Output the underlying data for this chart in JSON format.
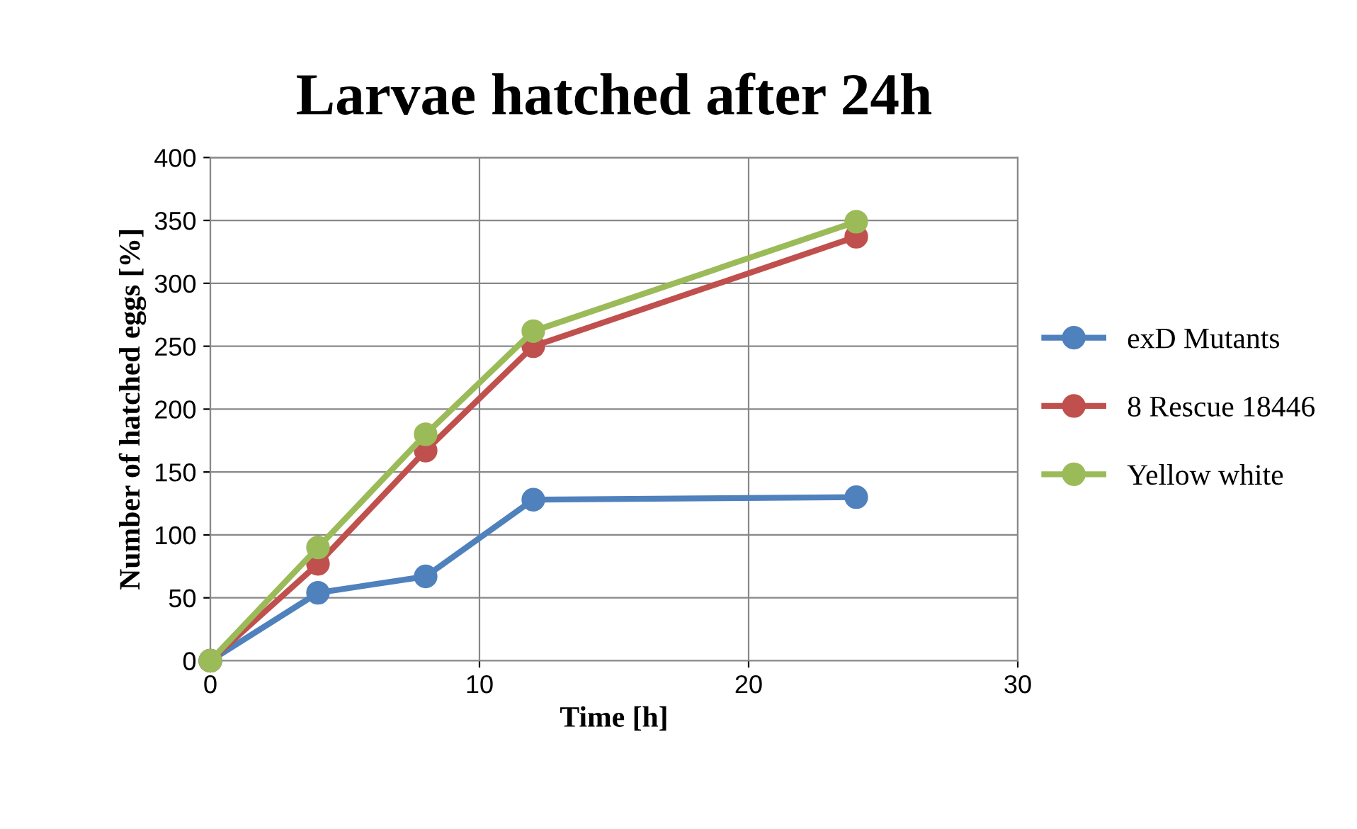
{
  "chart_data": {
    "type": "line",
    "title": "Larvae hatched after 24h",
    "xlabel": "Time [h]",
    "ylabel": "Number of hatched eggs [%]",
    "x": [
      0,
      4,
      8,
      12,
      24
    ],
    "series": [
      {
        "name": "exD Mutants",
        "color": "#4f81bd",
        "values": [
          0,
          54,
          67,
          128,
          130
        ]
      },
      {
        "name": "8 Rescue 18446",
        "color": "#c0504d",
        "values": [
          0,
          77,
          167,
          250,
          337
        ]
      },
      {
        "name": "Yellow white",
        "color": "#9bbb59",
        "values": [
          0,
          90,
          180,
          262,
          349
        ]
      }
    ],
    "xlim": [
      0,
      30
    ],
    "xticks": [
      0,
      10,
      20,
      30
    ],
    "ylim": [
      0,
      400
    ],
    "yticks": [
      0,
      50,
      100,
      150,
      200,
      250,
      300,
      350,
      400
    ],
    "grid": true,
    "legend": "right",
    "marker": "circle",
    "line_style": "solid"
  }
}
